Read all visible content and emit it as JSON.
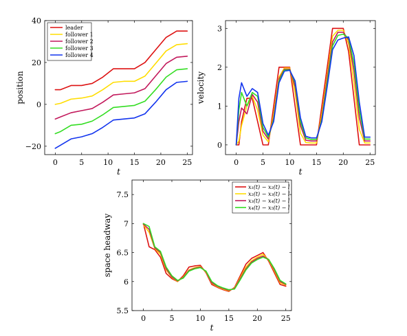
{
  "chart_data": [
    {
      "type": "line",
      "xlabel": "t",
      "ylabel": "position",
      "xlim": [
        -2,
        26
      ],
      "ylim": [
        -24,
        40
      ],
      "xticks": [
        0,
        5,
        10,
        15,
        20,
        25
      ],
      "yticks": [
        -20,
        0,
        20,
        40
      ],
      "legend_position": "top-left",
      "grid": false,
      "series": [
        {
          "name": "leader",
          "color": "#dd1111",
          "x": [
            0,
            1,
            3,
            5,
            7,
            9,
            11,
            13,
            15,
            17,
            19,
            21,
            23,
            25
          ],
          "y": [
            7,
            7,
            9,
            9,
            10,
            13,
            17,
            17,
            17,
            20,
            26,
            32,
            35,
            35
          ]
        },
        {
          "name": "follower 1",
          "color": "#ffdd00",
          "x": [
            0,
            1,
            3,
            5,
            7,
            9,
            11,
            13,
            15,
            17,
            19,
            21,
            23,
            25
          ],
          "y": [
            0,
            0.5,
            2.5,
            3,
            4,
            7,
            10.5,
            11,
            11,
            13.5,
            19.5,
            25.5,
            28.5,
            29
          ]
        },
        {
          "name": "follower 2",
          "color": "#c2185b",
          "x": [
            0,
            1,
            3,
            5,
            7,
            9,
            11,
            13,
            15,
            17,
            19,
            21,
            23,
            25
          ],
          "y": [
            -7,
            -6,
            -4,
            -3,
            -2,
            1,
            4.5,
            5,
            5.5,
            7.5,
            13.5,
            19.5,
            22.5,
            23
          ]
        },
        {
          "name": "follower 3",
          "color": "#33dd22",
          "x": [
            0,
            1,
            3,
            5,
            7,
            9,
            11,
            13,
            15,
            17,
            19,
            21,
            23,
            25
          ],
          "y": [
            -14,
            -13,
            -10,
            -9.5,
            -8,
            -5,
            -1.5,
            -1,
            -0.5,
            1.5,
            7,
            13,
            16.5,
            17
          ]
        },
        {
          "name": "follower 4",
          "color": "#1133ee",
          "x": [
            0,
            1,
            3,
            5,
            7,
            9,
            11,
            13,
            15,
            17,
            19,
            21,
            23,
            25
          ],
          "y": [
            -21,
            -19.5,
            -16.5,
            -15.5,
            -14,
            -11,
            -7.5,
            -7,
            -6.5,
            -4.5,
            1,
            7,
            10.5,
            11
          ]
        }
      ]
    },
    {
      "type": "line",
      "xlabel": "t",
      "ylabel": "velocity",
      "xlim": [
        -2,
        26
      ],
      "ylim": [
        -0.25,
        3.2
      ],
      "xticks": [
        0,
        5,
        10,
        15,
        20,
        25
      ],
      "yticks": [
        0,
        1,
        2,
        3
      ],
      "grid": false,
      "series": [
        {
          "color": "#dd1111",
          "x": [
            0,
            0.5,
            1,
            2,
            3,
            4,
            5,
            6,
            7,
            8,
            9,
            10,
            11,
            12,
            13,
            14,
            15,
            16,
            17,
            18,
            19,
            20,
            21,
            22,
            23,
            24,
            25
          ],
          "y": [
            0,
            0,
            0.6,
            1.2,
            1.2,
            0.6,
            0,
            0,
            1.0,
            2.0,
            2.0,
            2.0,
            1.0,
            0,
            0,
            0,
            0,
            1.0,
            2.0,
            3.0,
            3.0,
            3.0,
            2.4,
            1.2,
            0,
            0,
            0
          ]
        },
        {
          "color": "#ffdd00",
          "x": [
            0,
            0.5,
            1,
            2,
            3,
            4,
            5,
            6,
            7,
            8,
            9,
            10,
            11,
            12,
            13,
            14,
            15,
            16,
            17,
            18,
            19,
            20,
            21,
            22,
            23,
            24,
            25
          ],
          "y": [
            0,
            0.1,
            0.5,
            1.0,
            1.25,
            0.9,
            0.25,
            0.08,
            0.8,
            1.75,
            1.98,
            1.98,
            1.35,
            0.3,
            0.06,
            0.05,
            0.05,
            0.8,
            1.8,
            2.8,
            2.95,
            2.95,
            2.6,
            1.6,
            0.4,
            0.05,
            0.05
          ]
        },
        {
          "color": "#c2185b",
          "x": [
            0,
            0.5,
            1,
            2,
            3,
            4,
            5,
            6,
            7,
            8,
            9,
            10,
            11,
            12,
            13,
            14,
            15,
            16,
            17,
            18,
            19,
            20,
            21,
            22,
            23,
            24,
            25
          ],
          "y": [
            0,
            0.6,
            0.95,
            0.8,
            1.3,
            1.1,
            0.35,
            0.15,
            0.7,
            1.7,
            1.95,
            1.95,
            1.5,
            0.5,
            0.12,
            0.1,
            0.1,
            0.7,
            1.7,
            2.65,
            2.9,
            2.9,
            2.7,
            1.9,
            0.7,
            0.1,
            0.1
          ]
        },
        {
          "color": "#33dd22",
          "x": [
            0,
            0.5,
            1,
            2,
            3,
            4,
            5,
            6,
            7,
            8,
            9,
            10,
            11,
            12,
            13,
            14,
            15,
            16,
            17,
            18,
            19,
            20,
            21,
            22,
            23,
            24,
            25
          ],
          "y": [
            0,
            0.9,
            1.35,
            1.0,
            1.35,
            1.25,
            0.45,
            0.2,
            0.65,
            1.65,
            1.93,
            1.93,
            1.6,
            0.6,
            0.18,
            0.14,
            0.14,
            0.65,
            1.6,
            2.55,
            2.82,
            2.85,
            2.75,
            2.1,
            0.9,
            0.15,
            0.15
          ]
        },
        {
          "color": "#1133ee",
          "x": [
            0,
            0.5,
            1,
            2,
            3,
            4,
            5,
            6,
            7,
            8,
            9,
            10,
            11,
            12,
            13,
            14,
            15,
            16,
            17,
            18,
            19,
            20,
            21,
            22,
            23,
            24,
            25
          ],
          "y": [
            0,
            1.2,
            1.6,
            1.25,
            1.45,
            1.35,
            0.55,
            0.25,
            0.6,
            1.6,
            1.9,
            1.92,
            1.65,
            0.7,
            0.22,
            0.18,
            0.18,
            0.6,
            1.5,
            2.45,
            2.7,
            2.75,
            2.78,
            2.3,
            1.1,
            0.2,
            0.2
          ]
        }
      ]
    },
    {
      "type": "line",
      "xlabel": "t",
      "ylabel": "space headway",
      "xlim": [
        -2,
        26
      ],
      "ylim": [
        5.5,
        7.75
      ],
      "xticks": [
        0,
        5,
        10,
        15,
        20,
        25
      ],
      "yticks": [
        5.5,
        6,
        6.5,
        7,
        7.5
      ],
      "legend_position": "top-right",
      "grid": false,
      "series": [
        {
          "name": "x₁(t) − x₂(t) − l",
          "color": "#dd1111",
          "x": [
            0,
            1,
            2,
            3,
            4,
            5,
            6,
            7,
            8,
            9,
            10,
            11,
            12,
            13,
            14,
            15,
            16,
            17,
            18,
            19,
            20,
            21,
            22,
            23,
            24,
            25
          ],
          "y": [
            7.0,
            6.6,
            6.55,
            6.42,
            6.14,
            6.05,
            6.0,
            6.1,
            6.25,
            6.27,
            6.28,
            6.15,
            5.95,
            5.9,
            5.86,
            5.83,
            5.9,
            6.1,
            6.3,
            6.4,
            6.45,
            6.5,
            6.35,
            6.15,
            5.95,
            5.92
          ]
        },
        {
          "name": "x₂(t) − x₃(t) − l",
          "color": "#ffdd00",
          "x": [
            0,
            1,
            2,
            3,
            4,
            5,
            6,
            7,
            8,
            9,
            10,
            11,
            12,
            13,
            14,
            15,
            16,
            17,
            18,
            19,
            20,
            21,
            22,
            23,
            24,
            25
          ],
          "y": [
            6.98,
            6.85,
            6.57,
            6.47,
            6.2,
            6.07,
            6.0,
            6.08,
            6.2,
            6.24,
            6.26,
            6.16,
            5.97,
            5.91,
            5.87,
            5.84,
            5.89,
            6.07,
            6.25,
            6.36,
            6.42,
            6.47,
            6.37,
            6.18,
            5.98,
            5.94
          ]
        },
        {
          "name": "x₃(t) − x₄(t) − l",
          "color": "#c2185b",
          "x": [
            0,
            1,
            2,
            3,
            4,
            5,
            6,
            7,
            8,
            9,
            10,
            11,
            12,
            13,
            14,
            15,
            16,
            17,
            18,
            19,
            20,
            21,
            22,
            23,
            24,
            25
          ],
          "y": [
            6.99,
            6.9,
            6.58,
            6.5,
            6.22,
            6.08,
            6.01,
            6.07,
            6.19,
            6.23,
            6.25,
            6.17,
            5.98,
            5.92,
            5.88,
            5.85,
            5.88,
            6.05,
            6.22,
            6.34,
            6.4,
            6.44,
            6.38,
            6.2,
            6.0,
            5.95
          ]
        },
        {
          "name": "x₄(t) − x₅(t) − l",
          "color": "#33dd22",
          "x": [
            0,
            1,
            2,
            3,
            4,
            5,
            6,
            7,
            8,
            9,
            10,
            11,
            12,
            13,
            14,
            15,
            16,
            17,
            18,
            19,
            20,
            21,
            22,
            23,
            24,
            25
          ],
          "y": [
            7.0,
            6.95,
            6.6,
            6.52,
            6.25,
            6.1,
            6.02,
            6.06,
            6.18,
            6.22,
            6.24,
            6.18,
            6.0,
            5.93,
            5.89,
            5.86,
            5.87,
            6.03,
            6.2,
            6.32,
            6.38,
            6.42,
            6.38,
            6.22,
            6.02,
            5.96
          ]
        }
      ]
    }
  ]
}
